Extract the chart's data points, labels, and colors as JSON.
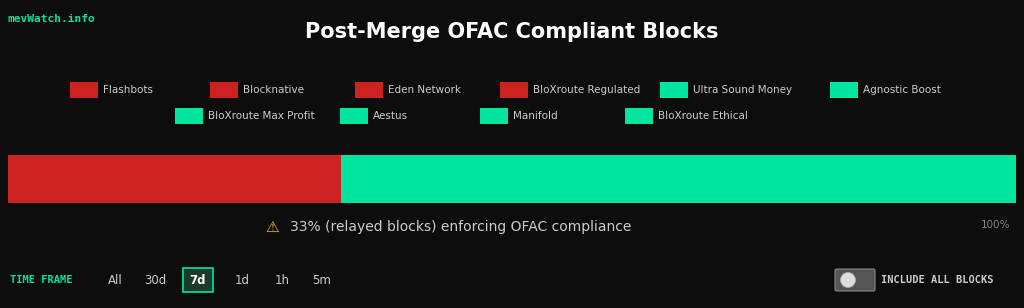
{
  "title": "Post-Merge OFAC Compliant Blocks",
  "background_color": "#0d0d0d",
  "bar_red_pct": 0.33,
  "bar_green_pct": 0.67,
  "bar_red_color": "#cc2222",
  "bar_green_color": "#00e5a0",
  "annotation_text": "33% (relayed blocks) enforcing OFAC compliance",
  "annotation_pct_text": "100%",
  "watermark": "mevWatch.info",
  "watermark_color": "#00e5a0",
  "legend_items_row1": [
    {
      "label": "Flashbots",
      "color": "#cc2222"
    },
    {
      "label": "Blocknative",
      "color": "#cc2222"
    },
    {
      "label": "Eden Network",
      "color": "#cc2222"
    },
    {
      "label": "BloXroute Regulated",
      "color": "#cc2222"
    },
    {
      "label": "Ultra Sound Money",
      "color": "#00e5a0"
    },
    {
      "label": "Agnostic Boost",
      "color": "#00e5a0"
    }
  ],
  "legend_items_row2": [
    {
      "label": "BloXroute Max Profit",
      "color": "#00e5a0"
    },
    {
      "label": "Aestus",
      "color": "#00e5a0"
    },
    {
      "label": "Manifold",
      "color": "#00e5a0"
    },
    {
      "label": "BloXroute Ethical",
      "color": "#00e5a0"
    }
  ],
  "timeframe_label": "TIME FRAME",
  "timeframe_options": [
    "All",
    "30d",
    "7d",
    "1d",
    "1h",
    "5m"
  ],
  "timeframe_selected": "7d",
  "timeframe_color": "#00e5a0",
  "include_label": "INCLUDE ALL BLOCKS",
  "title_color": "#ffffff",
  "text_color": "#cccccc",
  "annotation_color": "#cccccc",
  "warning_color": "#f0c040",
  "dim_text_color": "#888888"
}
